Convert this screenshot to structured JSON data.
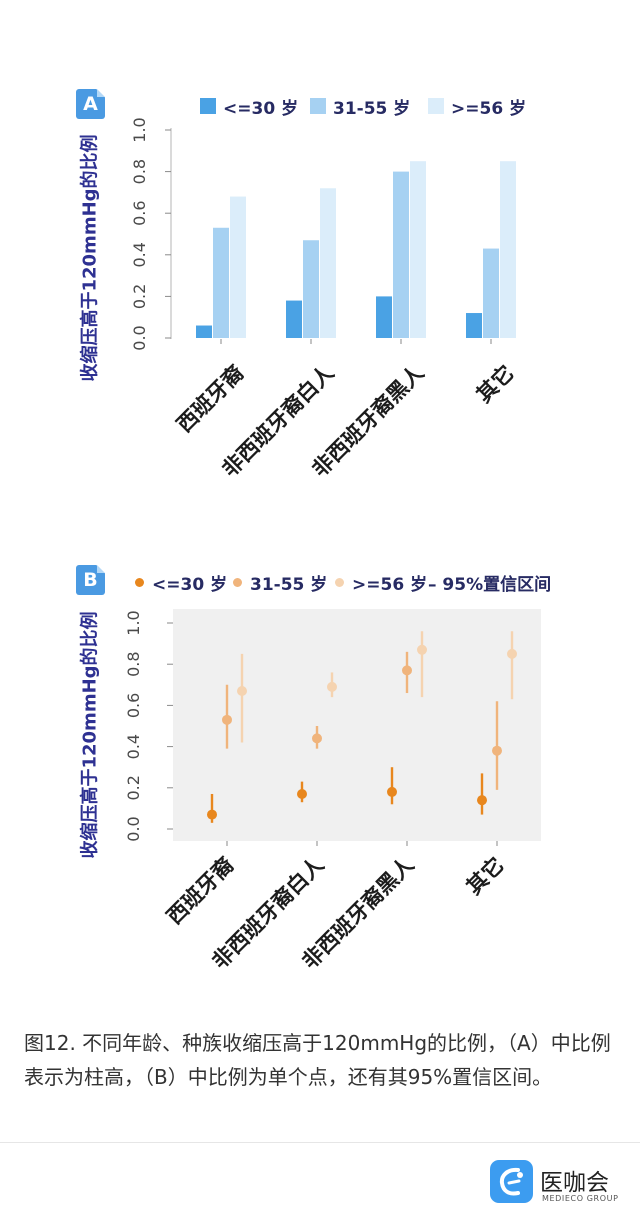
{
  "chart_data": [
    {
      "panel_label": "A",
      "type": "bar",
      "ylabel": "收缩压高于120mmHg的比例",
      "ylim": [
        0,
        1
      ],
      "yticks": [
        "0.0",
        "0.2",
        "0.4",
        "0.6",
        "0.8",
        "1.0"
      ],
      "categories": [
        "西班牙裔",
        "非西班牙裔白人",
        "非西班牙裔黑人",
        "其它"
      ],
      "series": [
        {
          "name": "<=30 岁",
          "color": "#4aa2e4",
          "values": [
            0.06,
            0.18,
            0.2,
            0.12
          ]
        },
        {
          "name": "31-55 岁",
          "color": "#a6d1f2",
          "values": [
            0.53,
            0.47,
            0.8,
            0.43
          ]
        },
        {
          "name": ">=56 岁",
          "color": "#dbedfa",
          "values": [
            0.68,
            0.72,
            0.85,
            0.85
          ]
        }
      ],
      "legend_position": "top",
      "grid": false
    },
    {
      "panel_label": "B",
      "type": "scatter",
      "ylabel": "收缩压高于120mmHg的比例",
      "ylim": [
        0,
        1
      ],
      "yticks": [
        "0.0",
        "0.2",
        "0.4",
        "0.6",
        "0.8",
        "1.0"
      ],
      "categories": [
        "西班牙裔",
        "非西班牙裔白人",
        "非西班牙裔黑人",
        "其它"
      ],
      "series": [
        {
          "name": "<=30 岁",
          "color": "#e8871e",
          "values": [
            0.07,
            0.17,
            0.18,
            0.14
          ],
          "ci_low": [
            0.03,
            0.13,
            0.12,
            0.07
          ],
          "ci_high": [
            0.17,
            0.23,
            0.3,
            0.27
          ]
        },
        {
          "name": "31-55 岁",
          "color": "#f0b47c",
          "values": [
            0.53,
            0.44,
            0.77,
            0.38
          ],
          "ci_low": [
            0.39,
            0.39,
            0.66,
            0.19
          ],
          "ci_high": [
            0.7,
            0.5,
            0.86,
            0.62
          ]
        },
        {
          "name": ">=56 岁",
          "color": "#f5d3b0",
          "values": [
            0.67,
            0.69,
            0.87,
            0.85
          ],
          "ci_low": [
            0.42,
            0.64,
            0.64,
            0.63
          ],
          "ci_high": [
            0.85,
            0.76,
            0.96,
            0.96
          ]
        }
      ],
      "ci_legend": "– 95%置信区间",
      "legend_position": "top",
      "panel_background": "#f0f0f0",
      "grid": false
    }
  ],
  "caption": "图12. 不同年龄、种族收缩压高于120mmHg的比例，（A）中比例表示为柱高，（B）中比例为单个点，还有其95%置信区间。",
  "logo": {
    "icon": "medieco-logo-icon",
    "name": "医咖会",
    "subtitle": "MEDIECO GROUP",
    "color": "#3c9cf0"
  },
  "colors": {
    "badge": "#4a9ae2",
    "axis_title": "#2e3192",
    "legend_text": "#272b63"
  }
}
